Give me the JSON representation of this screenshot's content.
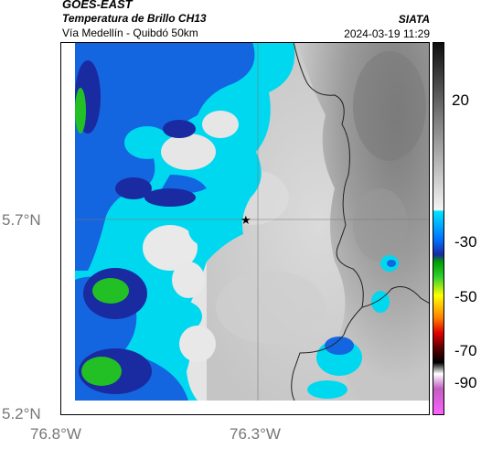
{
  "header": {
    "satellite": "GOES-EAST",
    "product": "Temperatura de Brillo CH13",
    "route": "Vía Medellín - Quibdó 50km",
    "org": "SIATA",
    "datetime": "2024-03-19 11:29"
  },
  "axes": {
    "lat_ticks": [
      "5.7°N",
      "5.2°N"
    ],
    "lon_ticks": [
      "76.8°W",
      "76.3°W"
    ]
  },
  "colorbar": {
    "labels": [
      "20",
      "-30",
      "-50",
      "-70",
      "-90"
    ],
    "stops": [
      "#1a1a1a",
      "#5a5a5a",
      "#a0a0a0",
      "#e0e0e0",
      "#00e5ff",
      "#0070ff",
      "#1a3cd0",
      "#00a000",
      "#30d030",
      "#ffff00",
      "#ff8000",
      "#e00000",
      "#600000",
      "#000000",
      "#ffffff",
      "#c060c0",
      "#ff60ff"
    ]
  },
  "marker": {
    "symbol": "★"
  },
  "colors": {
    "cloud_cyan": "#00d8f0",
    "cloud_blue": "#1466e0",
    "cloud_navy": "#1a2aa0",
    "cloud_green": "#22c025",
    "clear_light": "#e8e8e8",
    "clear_dark": "#8a8a8a"
  }
}
